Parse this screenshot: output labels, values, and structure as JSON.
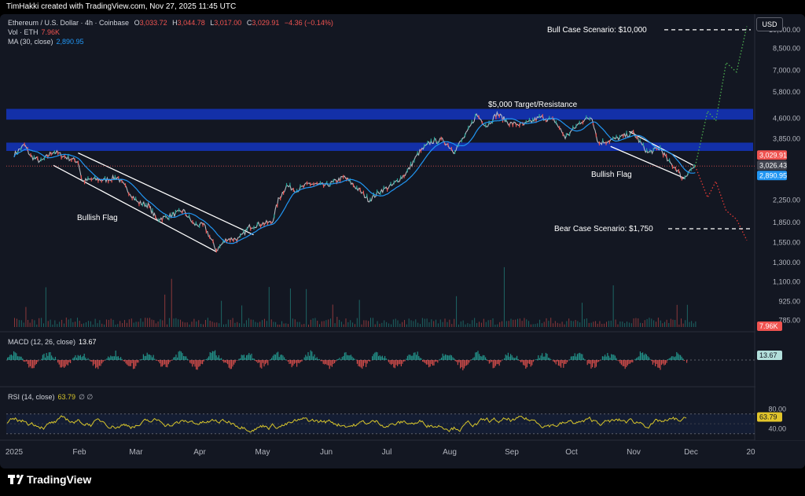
{
  "attribution": "TimHakki created with TradingView.com, Nov 27, 2025 11:45 UTC",
  "header": {
    "symbol": "Ethereum / U.S. Dollar · 4h · Coinbase",
    "ohlc": {
      "o_label": "O",
      "o": "3,033.72",
      "h_label": "H",
      "h": "3,044.78",
      "l_label": "L",
      "l": "3,017.00",
      "c_label": "C",
      "c": "3,029.91",
      "change": "−4.36 (−0.14%)"
    },
    "vol_label": "Vol · ETH",
    "vol_value": "7.96K",
    "ma_label": "MA (30, close)",
    "ma_value": "2,890.95",
    "macd_label": "MACD (12, 26, close)",
    "macd_value": "13.67",
    "rsi_label": "RSI (14, close)",
    "rsi_value": "63.79",
    "rsi_extra": "∅ ∅"
  },
  "currency_button": "USD",
  "brand": "TradingView",
  "colors": {
    "background": "#131722",
    "up": "#26a69a",
    "down": "#ef5350",
    "ma": "#2196f3",
    "zone": "#1433b4",
    "rsi": "#d8c62b",
    "bull_projection": "#4caf50",
    "bear_projection": "#e53935"
  },
  "annotations": {
    "bull_case": "Bull Case Scenario: $10,000",
    "bear_case": "Bear Case Scenario: $1,750",
    "target": "$5,000 Target/Resistance",
    "flag_left": "Bullish Flag",
    "flag_right": "Bullish Flag"
  },
  "chart_data": {
    "type": "line",
    "log_scale": true,
    "x_ticks": [
      "2025",
      "Feb",
      "Mar",
      "Apr",
      "May",
      "Jun",
      "Jul",
      "Aug",
      "Sep",
      "Oct",
      "Nov",
      "Dec",
      "20"
    ],
    "y_ticks": [
      "10,000.00",
      "8,500.00",
      "7,000.00",
      "5,800.00",
      "4,600.00",
      "3,850.00",
      "3,029.91",
      "3,026.43",
      "2,890.95",
      "2,250.00",
      "1,850.00",
      "1,550.00",
      "1,300.00",
      "1,100.00",
      "925.00",
      "785.00"
    ],
    "y_ticks_numeric": [
      10000,
      8500,
      7000,
      5800,
      4600,
      3850,
      2250,
      1850,
      1550,
      1300,
      1100,
      925,
      785
    ],
    "ylim": [
      740,
      11000
    ],
    "price_tags": [
      {
        "value": "3,029.91",
        "color": "#ef5350"
      },
      {
        "value": "3,026.43",
        "color": "#434651"
      },
      {
        "value": "2,890.95",
        "color": "#2196f3"
      }
    ],
    "volume_tag": "7.96K",
    "price_path": [
      {
        "x": "2025-01-01",
        "y": 3350
      },
      {
        "x": "2025-01-06",
        "y": 3650
      },
      {
        "x": "2025-01-09",
        "y": 3300
      },
      {
        "x": "2025-01-14",
        "y": 3150
      },
      {
        "x": "2025-01-20",
        "y": 3450
      },
      {
        "x": "2025-01-25",
        "y": 3300
      },
      {
        "x": "2025-02-01",
        "y": 3150
      },
      {
        "x": "2025-02-03",
        "y": 2650
      },
      {
        "x": "2025-02-08",
        "y": 2700
      },
      {
        "x": "2025-02-14",
        "y": 2680
      },
      {
        "x": "2025-02-20",
        "y": 2750
      },
      {
        "x": "2025-02-25",
        "y": 2450
      },
      {
        "x": "2025-03-02",
        "y": 2200
      },
      {
        "x": "2025-03-07",
        "y": 2150
      },
      {
        "x": "2025-03-11",
        "y": 1900
      },
      {
        "x": "2025-03-17",
        "y": 1950
      },
      {
        "x": "2025-03-24",
        "y": 2050
      },
      {
        "x": "2025-03-29",
        "y": 1820
      },
      {
        "x": "2025-04-03",
        "y": 1800
      },
      {
        "x": "2025-04-09",
        "y": 1450
      },
      {
        "x": "2025-04-14",
        "y": 1600
      },
      {
        "x": "2025-04-20",
        "y": 1600
      },
      {
        "x": "2025-04-25",
        "y": 1780
      },
      {
        "x": "2025-05-01",
        "y": 1830
      },
      {
        "x": "2025-05-06",
        "y": 1850
      },
      {
        "x": "2025-05-09",
        "y": 2250
      },
      {
        "x": "2025-05-13",
        "y": 2550
      },
      {
        "x": "2025-05-18",
        "y": 2450
      },
      {
        "x": "2025-05-24",
        "y": 2600
      },
      {
        "x": "2025-06-01",
        "y": 2550
      },
      {
        "x": "2025-06-10",
        "y": 2750
      },
      {
        "x": "2025-06-16",
        "y": 2500
      },
      {
        "x": "2025-06-22",
        "y": 2250
      },
      {
        "x": "2025-06-28",
        "y": 2450
      },
      {
        "x": "2025-07-03",
        "y": 2550
      },
      {
        "x": "2025-07-10",
        "y": 2850
      },
      {
        "x": "2025-07-16",
        "y": 3400
      },
      {
        "x": "2025-07-22",
        "y": 3750
      },
      {
        "x": "2025-07-28",
        "y": 3800
      },
      {
        "x": "2025-08-02",
        "y": 3450
      },
      {
        "x": "2025-08-08",
        "y": 4000
      },
      {
        "x": "2025-08-13",
        "y": 4750
      },
      {
        "x": "2025-08-18",
        "y": 4300
      },
      {
        "x": "2025-08-23",
        "y": 4800
      },
      {
        "x": "2025-08-29",
        "y": 4400
      },
      {
        "x": "2025-09-05",
        "y": 4350
      },
      {
        "x": "2025-09-13",
        "y": 4650
      },
      {
        "x": "2025-09-20",
        "y": 4500
      },
      {
        "x": "2025-09-25",
        "y": 3900
      },
      {
        "x": "2025-10-03",
        "y": 4500
      },
      {
        "x": "2025-10-08",
        "y": 4650
      },
      {
        "x": "2025-10-11",
        "y": 3700
      },
      {
        "x": "2025-10-17",
        "y": 3800
      },
      {
        "x": "2025-10-22",
        "y": 3900
      },
      {
        "x": "2025-10-28",
        "y": 4050
      },
      {
        "x": "2025-11-04",
        "y": 3400
      },
      {
        "x": "2025-11-10",
        "y": 3550
      },
      {
        "x": "2025-11-14",
        "y": 3150
      },
      {
        "x": "2025-11-18",
        "y": 2950
      },
      {
        "x": "2025-11-21",
        "y": 2700
      },
      {
        "x": "2025-11-24",
        "y": 2900
      },
      {
        "x": "2025-11-27",
        "y": 3030
      }
    ],
    "resistance_zones": [
      {
        "low": 4550,
        "high": 5000
      },
      {
        "low": 3460,
        "high": 3720
      }
    ],
    "bull_projection": [
      {
        "x": "2025-11-27",
        "y": 3030
      },
      {
        "x": "2025-12-03",
        "y": 4900
      },
      {
        "x": "2025-12-07",
        "y": 4500
      },
      {
        "x": "2025-12-12",
        "y": 7500
      },
      {
        "x": "2025-12-17",
        "y": 6900
      },
      {
        "x": "2025-12-22",
        "y": 10300
      }
    ],
    "bear_projection": [
      {
        "x": "2025-11-27",
        "y": 3030
      },
      {
        "x": "2025-12-03",
        "y": 2300
      },
      {
        "x": "2025-12-07",
        "y": 2650
      },
      {
        "x": "2025-12-12",
        "y": 2050
      },
      {
        "x": "2025-12-17",
        "y": 1900
      },
      {
        "x": "2025-12-22",
        "y": 1580
      }
    ],
    "bull_target": 10000,
    "bear_target": 1750,
    "macd_ticks": [],
    "rsi_ticks": [
      "80.00",
      "40.00"
    ],
    "rsi_range": [
      20,
      90
    ]
  }
}
